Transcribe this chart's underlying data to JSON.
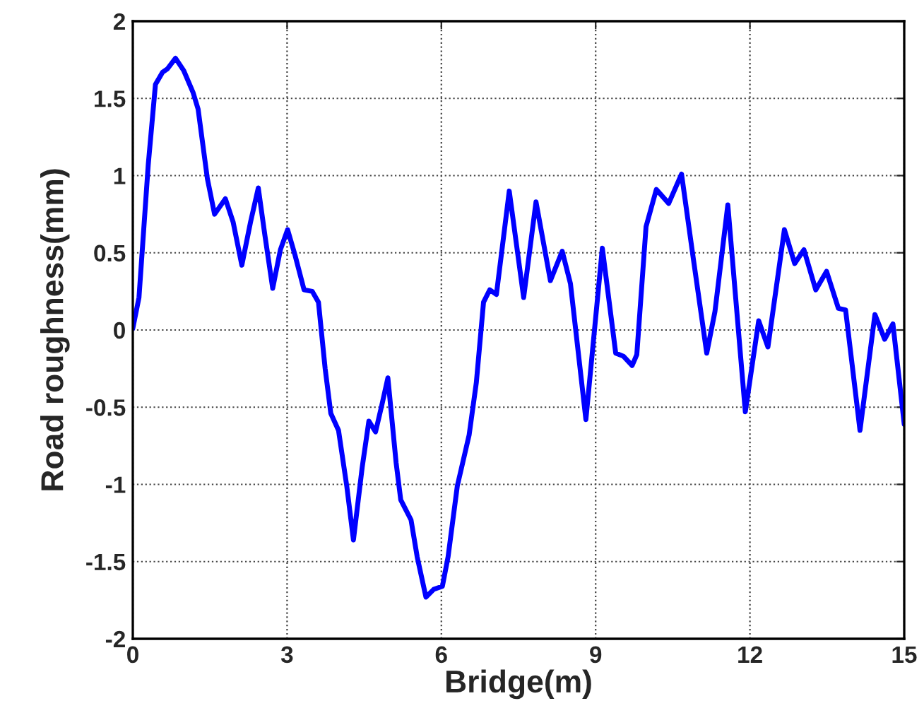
{
  "chart_data": {
    "type": "line",
    "xlabel": "Bridge(m)",
    "ylabel": "Road roughness(mm)",
    "xlim": [
      0,
      15
    ],
    "ylim": [
      -2,
      2
    ],
    "xticks": [
      0,
      3,
      6,
      9,
      12,
      15
    ],
    "yticks": [
      -2,
      -1.5,
      -1,
      -0.5,
      0,
      0.5,
      1,
      1.5,
      2
    ],
    "grid": true,
    "line_style": "solid",
    "marker": "none",
    "series": [
      {
        "color": "#0000ff",
        "x": [
          0,
          0.12,
          0.3,
          0.44,
          0.58,
          0.67,
          0.83,
          0.99,
          1.17,
          1.27,
          1.45,
          1.59,
          1.8,
          1.95,
          2.12,
          2.29,
          2.44,
          2.57,
          2.72,
          2.87,
          3.01,
          3.15,
          3.33,
          3.49,
          3.61,
          3.74,
          3.85,
          4.0,
          4.16,
          4.29,
          4.46,
          4.59,
          4.72,
          4.84,
          4.96,
          5.12,
          5.21,
          5.41,
          5.53,
          5.7,
          5.85,
          6.02,
          6.13,
          6.31,
          6.54,
          6.68,
          6.82,
          6.94,
          7.07,
          7.32,
          7.6,
          7.84,
          8.12,
          8.35,
          8.51,
          8.81,
          9.13,
          9.39,
          9.54,
          9.71,
          9.8,
          9.98,
          10.18,
          10.42,
          10.67,
          10.9,
          11.16,
          11.32,
          11.57,
          11.91,
          12.17,
          12.35,
          12.67,
          12.87,
          13.05,
          13.28,
          13.49,
          13.72,
          13.86,
          14.14,
          14.43,
          14.62,
          14.78,
          15.0
        ],
        "values": [
          0.01,
          0.21,
          1.07,
          1.59,
          1.67,
          1.69,
          1.76,
          1.68,
          1.54,
          1.43,
          0.98,
          0.75,
          0.85,
          0.7,
          0.42,
          0.7,
          0.92,
          0.61,
          0.27,
          0.52,
          0.65,
          0.49,
          0.26,
          0.25,
          0.18,
          -0.25,
          -0.54,
          -0.65,
          -1.01,
          -1.36,
          -0.89,
          -0.59,
          -0.66,
          -0.49,
          -0.31,
          -0.86,
          -1.1,
          -1.23,
          -1.47,
          -1.73,
          -1.68,
          -1.66,
          -1.47,
          -1.01,
          -0.68,
          -0.34,
          0.18,
          0.26,
          0.23,
          0.9,
          0.21,
          0.83,
          0.32,
          0.51,
          0.3,
          -0.58,
          0.53,
          -0.15,
          -0.17,
          -0.23,
          -0.16,
          0.67,
          0.91,
          0.82,
          1.01,
          0.46,
          -0.15,
          0.12,
          0.81,
          -0.53,
          0.06,
          -0.11,
          0.65,
          0.43,
          0.52,
          0.26,
          0.38,
          0.14,
          0.13,
          -0.65,
          0.1,
          -0.06,
          0.04,
          -0.61
        ]
      }
    ]
  }
}
